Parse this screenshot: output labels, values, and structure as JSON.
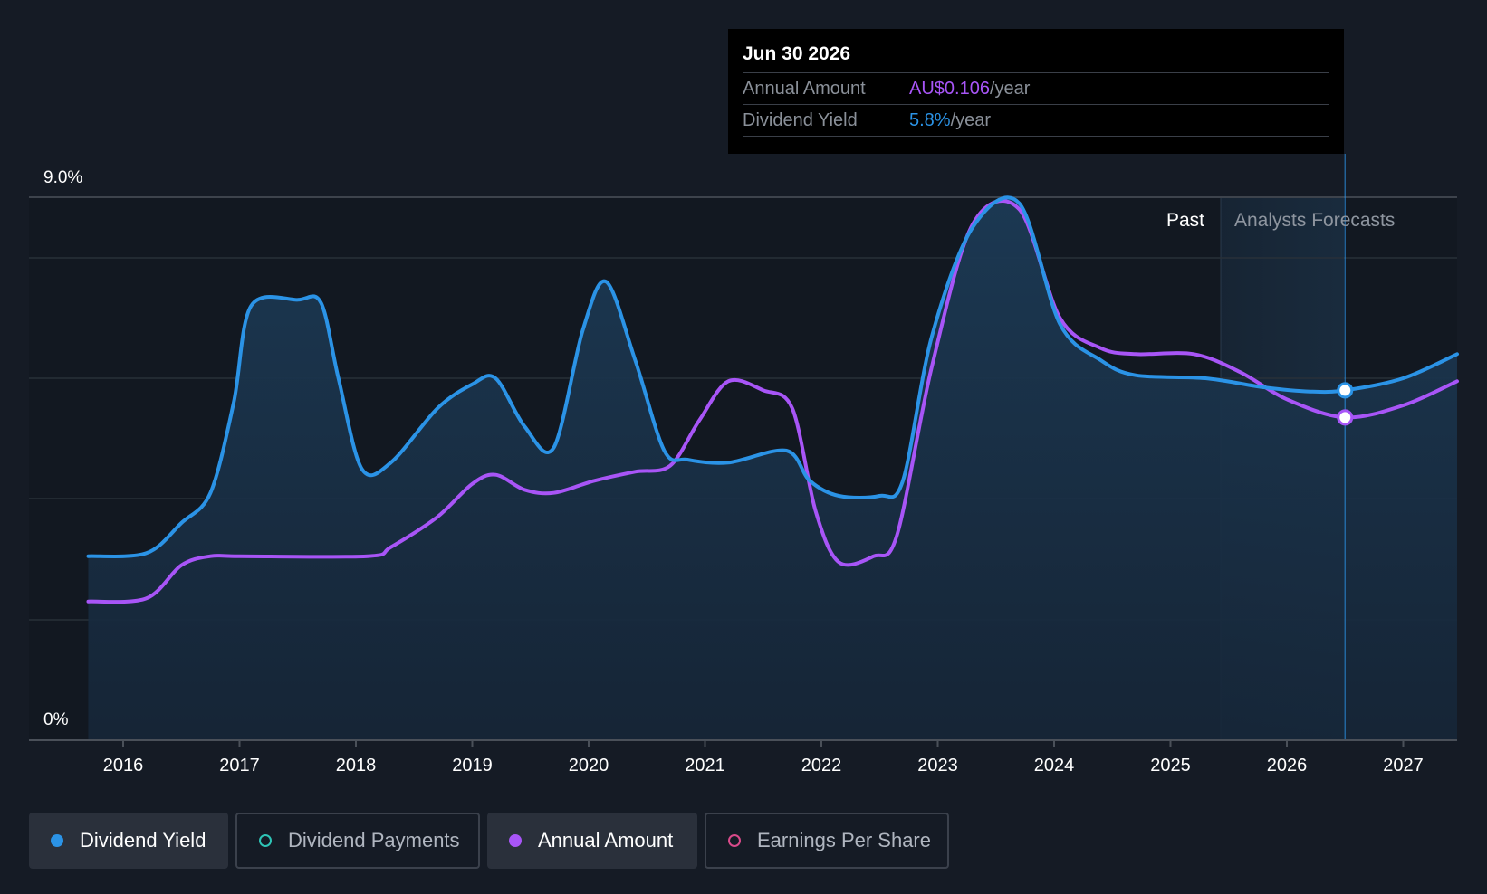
{
  "chart_data": {
    "type": "line",
    "x_ticks": [
      "2016",
      "2017",
      "2018",
      "2019",
      "2020",
      "2021",
      "2022",
      "2023",
      "2024",
      "2025",
      "2026",
      "2027"
    ],
    "y_axis": {
      "top_label": "9.0%",
      "bottom_label": "0%",
      "ylim": [
        0,
        9.0
      ]
    },
    "regions": {
      "past_label": "Past",
      "forecast_label": "Analysts Forecasts"
    },
    "series": [
      {
        "name": "Dividend Yield",
        "color": "#2b93e6",
        "points": [
          [
            2015.7,
            3.05
          ],
          [
            2016.2,
            3.1
          ],
          [
            2016.5,
            3.6
          ],
          [
            2016.75,
            4.1
          ],
          [
            2016.95,
            5.6
          ],
          [
            2017.1,
            7.2
          ],
          [
            2017.5,
            7.3
          ],
          [
            2017.7,
            7.25
          ],
          [
            2017.85,
            6.0
          ],
          [
            2018.05,
            4.5
          ],
          [
            2018.3,
            4.6
          ],
          [
            2018.7,
            5.5
          ],
          [
            2019.0,
            5.9
          ],
          [
            2019.2,
            6.0
          ],
          [
            2019.45,
            5.2
          ],
          [
            2019.7,
            4.85
          ],
          [
            2019.95,
            6.8
          ],
          [
            2020.15,
            7.6
          ],
          [
            2020.4,
            6.3
          ],
          [
            2020.65,
            4.8
          ],
          [
            2020.85,
            4.65
          ],
          [
            2021.2,
            4.6
          ],
          [
            2021.7,
            4.8
          ],
          [
            2021.9,
            4.3
          ],
          [
            2022.15,
            4.05
          ],
          [
            2022.5,
            4.05
          ],
          [
            2022.7,
            4.3
          ],
          [
            2022.95,
            6.7
          ],
          [
            2023.3,
            8.5
          ],
          [
            2023.7,
            8.9
          ],
          [
            2024.05,
            6.9
          ],
          [
            2024.4,
            6.3
          ],
          [
            2024.7,
            6.05
          ],
          [
            2025.3,
            6.0
          ],
          [
            2025.8,
            5.85
          ],
          [
            2026.2,
            5.78
          ],
          [
            2026.5,
            5.8
          ],
          [
            2027.0,
            6.0
          ],
          [
            2027.5,
            6.4
          ]
        ]
      },
      {
        "name": "Annual Amount",
        "color": "#a855f7",
        "points": [
          [
            2015.7,
            2.3
          ],
          [
            2016.2,
            2.35
          ],
          [
            2016.5,
            2.9
          ],
          [
            2016.75,
            3.05
          ],
          [
            2017.0,
            3.05
          ],
          [
            2018.1,
            3.05
          ],
          [
            2018.3,
            3.2
          ],
          [
            2018.7,
            3.7
          ],
          [
            2019.0,
            4.25
          ],
          [
            2019.2,
            4.4
          ],
          [
            2019.45,
            4.15
          ],
          [
            2019.7,
            4.1
          ],
          [
            2020.05,
            4.3
          ],
          [
            2020.4,
            4.45
          ],
          [
            2020.7,
            4.55
          ],
          [
            2020.95,
            5.3
          ],
          [
            2021.2,
            5.95
          ],
          [
            2021.5,
            5.8
          ],
          [
            2021.75,
            5.5
          ],
          [
            2021.95,
            3.8
          ],
          [
            2022.15,
            2.95
          ],
          [
            2022.45,
            3.05
          ],
          [
            2022.65,
            3.4
          ],
          [
            2022.95,
            6.2
          ],
          [
            2023.3,
            8.55
          ],
          [
            2023.7,
            8.8
          ],
          [
            2024.05,
            7.0
          ],
          [
            2024.4,
            6.5
          ],
          [
            2024.7,
            6.4
          ],
          [
            2025.2,
            6.4
          ],
          [
            2025.6,
            6.1
          ],
          [
            2026.0,
            5.65
          ],
          [
            2026.5,
            5.35
          ],
          [
            2027.0,
            5.55
          ],
          [
            2027.5,
            5.95
          ]
        ]
      }
    ],
    "highlight_x": 2026.5
  },
  "tooltip": {
    "date": "Jun 30 2026",
    "annual_label": "Annual Amount",
    "annual_value": "AU$0.106",
    "yield_label": "Dividend Yield",
    "yield_value": "5.8%",
    "unit": "/year"
  },
  "legend": [
    {
      "label": "Dividend Yield",
      "color": "#2b93e6",
      "active": true
    },
    {
      "label": "Dividend Payments",
      "color": "#2ec4b6",
      "active": false
    },
    {
      "label": "Annual Amount",
      "color": "#a855f7",
      "active": true
    },
    {
      "label": "Earnings Per Share",
      "color": "#d94a8a",
      "active": false
    }
  ]
}
